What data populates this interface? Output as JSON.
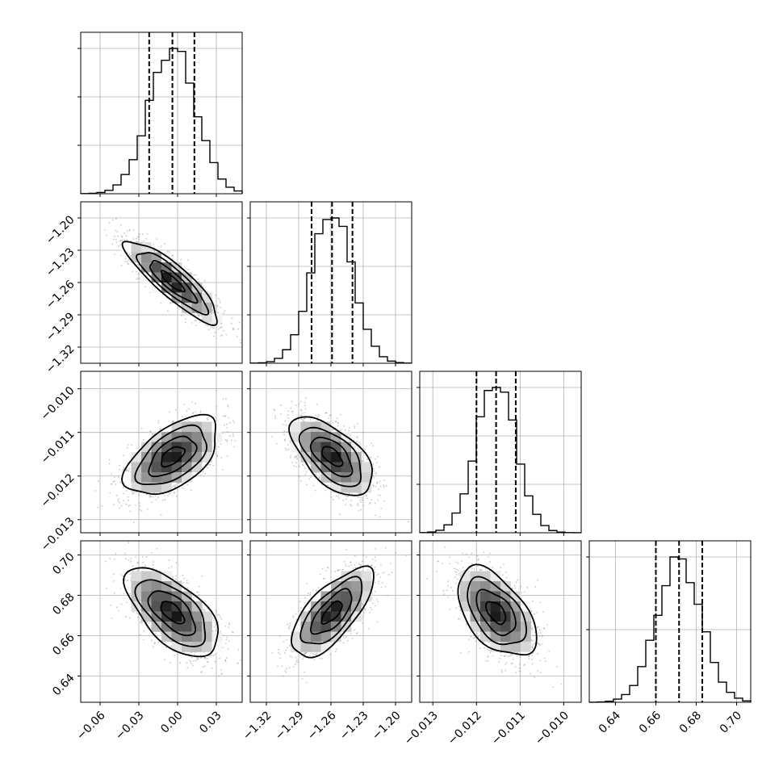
{
  "chart_data": {
    "type": "corner",
    "parameters": [
      {
        "index": 0,
        "range": [
          -0.075,
          0.05
        ],
        "ticks": [
          -0.06,
          -0.03,
          0.0,
          0.03
        ],
        "tick_labels": [
          "−0.06",
          "−0.03",
          "0.00",
          "0.03"
        ],
        "mean": -0.004,
        "sd": 0.018,
        "quantiles": [
          -0.022,
          -0.004,
          0.013
        ],
        "histogram_y_gridlines": 3
      },
      {
        "index": 1,
        "range": [
          -1.335,
          -1.185
        ],
        "ticks": [
          -1.32,
          -1.29,
          -1.26,
          -1.23,
          -1.2
        ],
        "tick_labels": [
          "−1.32",
          "−1.29",
          "−1.26",
          "−1.23",
          "−1.20"
        ],
        "mean": -1.259,
        "sd": 0.019,
        "quantiles": [
          -1.278,
          -1.259,
          -1.24
        ],
        "histogram_y_gridlines": 3
      },
      {
        "index": 2,
        "range": [
          -0.0133,
          -0.0096
        ],
        "ticks": [
          -0.013,
          -0.012,
          -0.011,
          -0.01
        ],
        "tick_labels": [
          "−0.013",
          "−0.012",
          "−0.011",
          "−0.010"
        ],
        "mean": -0.01155,
        "sd": 0.00045,
        "quantiles": [
          -0.012,
          -0.01155,
          -0.0111
        ],
        "histogram_y_gridlines": 3
      },
      {
        "index": 3,
        "range": [
          0.627,
          0.707
        ],
        "ticks": [
          0.64,
          0.66,
          0.68,
          0.7
        ],
        "tick_labels": [
          "0.64",
          "0.66",
          "0.68",
          "0.70"
        ],
        "mean": 0.6715,
        "sd": 0.011,
        "quantiles": [
          0.66,
          0.6715,
          0.683
        ],
        "histogram_y_gridlines": 2
      }
    ],
    "correlations": {
      "1-0": -0.87,
      "2-0": 0.55,
      "2-1": -0.6,
      "3-0": -0.62,
      "3-1": 0.7,
      "3-2": -0.52
    },
    "histogram_bins": 20,
    "contour_levels": 4,
    "grid": true,
    "colors": {
      "line": "#000000",
      "points": "#9a9a9a",
      "grid": "#b0b0b0",
      "density_max": "#000000",
      "density_min": "#ffffff"
    }
  }
}
